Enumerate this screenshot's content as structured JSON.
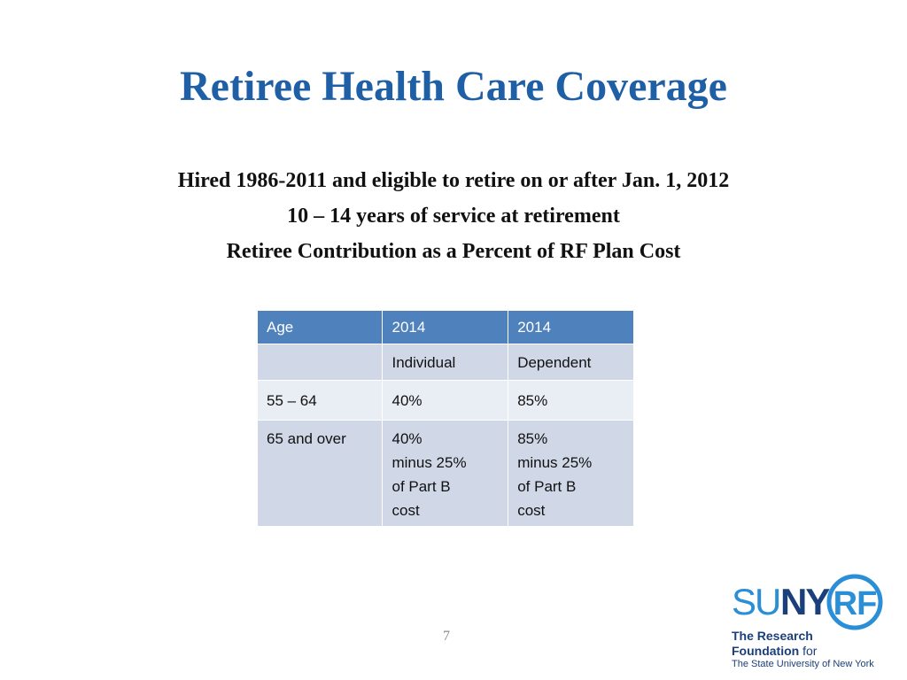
{
  "slide": {
    "title": "Retiree Health Care Coverage",
    "subtitle_lines": [
      "Hired 1986-2011 and eligible to retire on or after Jan. 1, 2012",
      "10 – 14 years of service at retirement",
      "Retiree Contribution as a Percent of RF Plan Cost"
    ],
    "page_number": "7"
  },
  "table": {
    "headers": [
      "Age",
      "2014",
      "2014"
    ],
    "rows": [
      [
        "",
        "Individual",
        "Dependent"
      ],
      [
        "55 – 64",
        "40%",
        "85%"
      ],
      [
        "65 and over",
        "40%\nminus 25%\nof Part B\ncost",
        "85%\nminus 25%\nof Part B\ncost"
      ]
    ]
  },
  "logo": {
    "wordmark_suny": "SUNY",
    "wordmark_rf": "RF",
    "line1": "The Research",
    "line2_bold": "Foundation",
    "line2_light": " for",
    "line3": "The State University of New York"
  },
  "colors": {
    "title": "#1f5fa6",
    "table_header": "#4f81bd",
    "row_dark": "#d0d8e8",
    "row_light": "#e9edf4",
    "logo_blue": "#1b3f7a",
    "logo_light_blue": "#2a8fd6"
  }
}
